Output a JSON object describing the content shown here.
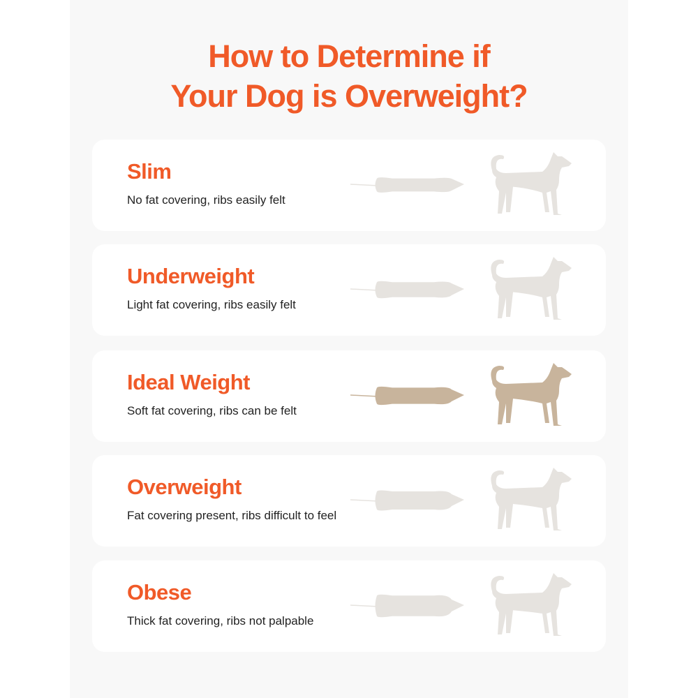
{
  "title_line1": "How to Determine if",
  "title_line2": "Your Dog is Overweight?",
  "colors": {
    "accent": "#f05a28",
    "dog_inactive": "#e6e3df",
    "dog_active": "#c8b49c",
    "panel": "#f8f8f8"
  },
  "levels": [
    {
      "name": "Slim",
      "description": "No fat covering, ribs easily felt",
      "active": false,
      "body_width": 0.6
    },
    {
      "name": "Underweight",
      "description": "Light fat covering, ribs easily felt",
      "active": false,
      "body_width": 0.75
    },
    {
      "name": "Ideal Weight",
      "description": "Soft fat covering, ribs can be felt",
      "active": true,
      "body_width": 0.85
    },
    {
      "name": "Overweight",
      "description": "Fat covering present, ribs difficult to feel",
      "active": false,
      "body_width": 1.0
    },
    {
      "name": "Obese",
      "description": "Thick fat covering, ribs not palpable",
      "active": false,
      "body_width": 1.2
    }
  ]
}
